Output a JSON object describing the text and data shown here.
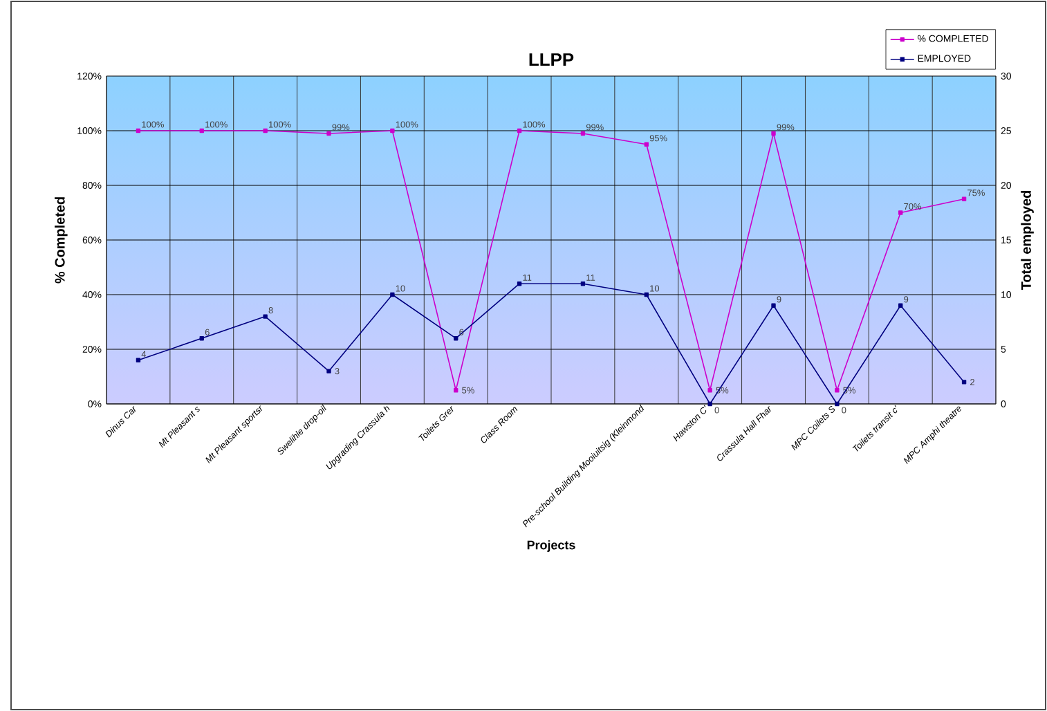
{
  "chart_data": {
    "type": "line",
    "title": "LLPP",
    "xlabel": "Projects",
    "ylabel": "% Completed",
    "y2label": "Total employed",
    "categories": [
      "Dinus Car",
      "Mt Pleasant s",
      "Mt Pleasant sportsr",
      "Swelihle drop-oil",
      "Upgrading Crassula h",
      "Toilets Grer",
      "Class Room",
      null,
      "Pre-school Building Mooiuitsig (Kleinmond",
      "Hawston C'",
      "Crassula Hall Fhar",
      "MPC Coilets S",
      "Toilets transit c'",
      "MPC Amphi theatre"
    ],
    "series": [
      {
        "name": "% COMPLETED",
        "color": "#cc00cc",
        "values": [
          100,
          100,
          100,
          99,
          100,
          5,
          100,
          99,
          95,
          5,
          99,
          5,
          70,
          75
        ],
        "value_labels": [
          "100%",
          "100%",
          "100%",
          "99%",
          "100%",
          "5%",
          "100%",
          "99%",
          "95%",
          "5%",
          "99%",
          "5%",
          "70%",
          "75%"
        ]
      },
      {
        "name": "EMPLOYED",
        "color": "#000080",
        "axis": "y2",
        "values": [
          4,
          6,
          8,
          3,
          10,
          6,
          11,
          11,
          10,
          0,
          9,
          0,
          9,
          2
        ],
        "value_labels": [
          "4",
          "6",
          "8",
          "3",
          "10",
          "6",
          "11",
          "11",
          "10",
          "0",
          "9",
          "0",
          "9",
          "2"
        ]
      }
    ],
    "ylim": [
      0,
      120
    ],
    "yticks": [
      {
        "value": 0,
        "label": "0%"
      },
      {
        "value": 20,
        "label": "20%"
      },
      {
        "value": 40,
        "label": "40%"
      },
      {
        "value": 60,
        "label": "60%"
      },
      {
        "value": 80,
        "label": "80%"
      },
      {
        "value": 100,
        "label": "100%"
      },
      {
        "value": 120,
        "label": "120%"
      }
    ],
    "y2lim": [
      0,
      30
    ],
    "y2ticks": [
      0,
      5,
      10,
      15,
      20,
      25,
      30
    ],
    "grid": true,
    "legend": "top right",
    "marker": "square"
  }
}
